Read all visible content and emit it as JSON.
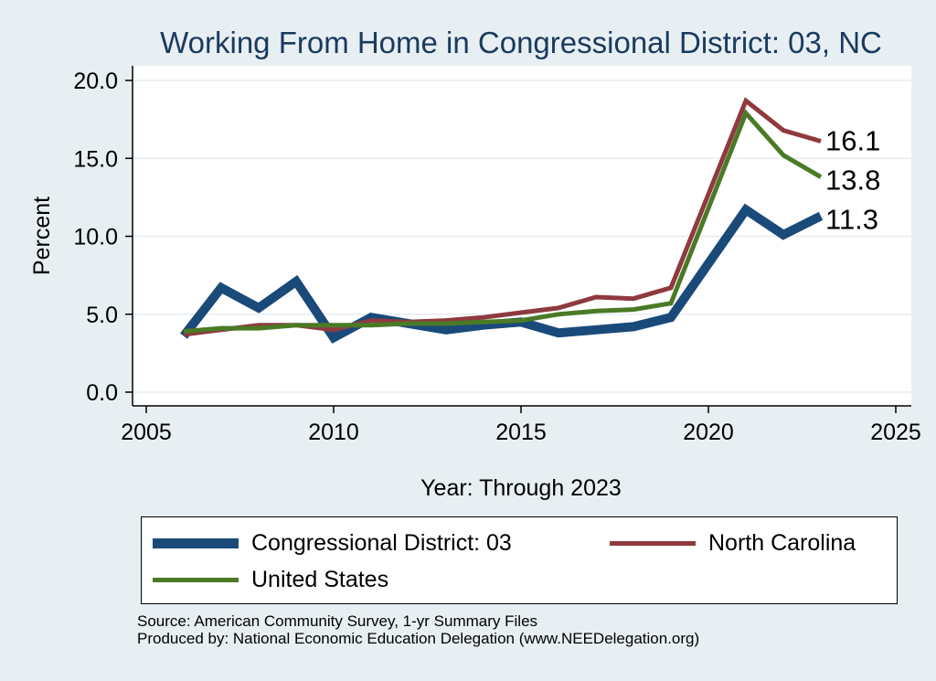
{
  "chart_data": {
    "type": "line",
    "title": "Working From Home in Congressional District: 03, NC",
    "xlabel": "Year: Through 2023",
    "ylabel": "Percent",
    "xlim": [
      2005,
      2025
    ],
    "ylim": [
      0,
      20
    ],
    "xticks": [
      "2005",
      "2010",
      "2015",
      "2020",
      "2025"
    ],
    "yticks": [
      "0.0",
      "5.0",
      "10.0",
      "15.0",
      "20.0"
    ],
    "grid": true,
    "legend_position": "bottom",
    "series": [
      {
        "name": "Congressional District: 03",
        "color": "#1a4a7a",
        "x": [
          2006,
          2007,
          2008,
          2009,
          2010,
          2011,
          2012,
          2013,
          2014,
          2015,
          2016,
          2017,
          2018,
          2019,
          2021,
          2022,
          2023
        ],
        "values": [
          3.6,
          6.7,
          5.4,
          7.1,
          3.5,
          4.8,
          4.4,
          4.0,
          4.3,
          4.5,
          3.8,
          4.0,
          4.2,
          4.8,
          11.7,
          10.1,
          11.3
        ],
        "end_label": "11.3"
      },
      {
        "name": "North Carolina",
        "color": "#8e3a3f",
        "x": [
          2006,
          2007,
          2008,
          2009,
          2010,
          2011,
          2012,
          2013,
          2014,
          2015,
          2016,
          2017,
          2018,
          2019,
          2021,
          2022,
          2023
        ],
        "values": [
          3.7,
          4.0,
          4.3,
          4.3,
          4.0,
          4.6,
          4.5,
          4.6,
          4.8,
          5.1,
          5.4,
          6.1,
          6.0,
          6.7,
          18.7,
          16.8,
          16.1
        ],
        "end_label": "16.1"
      },
      {
        "name": "United States",
        "color": "#4a7a25",
        "x": [
          2006,
          2007,
          2008,
          2009,
          2010,
          2011,
          2012,
          2013,
          2014,
          2015,
          2016,
          2017,
          2018,
          2019,
          2021,
          2022,
          2023
        ],
        "values": [
          3.9,
          4.1,
          4.1,
          4.3,
          4.3,
          4.3,
          4.4,
          4.4,
          4.5,
          4.6,
          5.0,
          5.2,
          5.3,
          5.7,
          17.9,
          15.2,
          13.8
        ],
        "end_label": "13.8"
      }
    ]
  },
  "footer": {
    "source": "Source: American Community Survey, 1-yr Summary Files",
    "produced": "Produced by: National Economic Education Delegation (www.NEEDelegation.org)"
  }
}
